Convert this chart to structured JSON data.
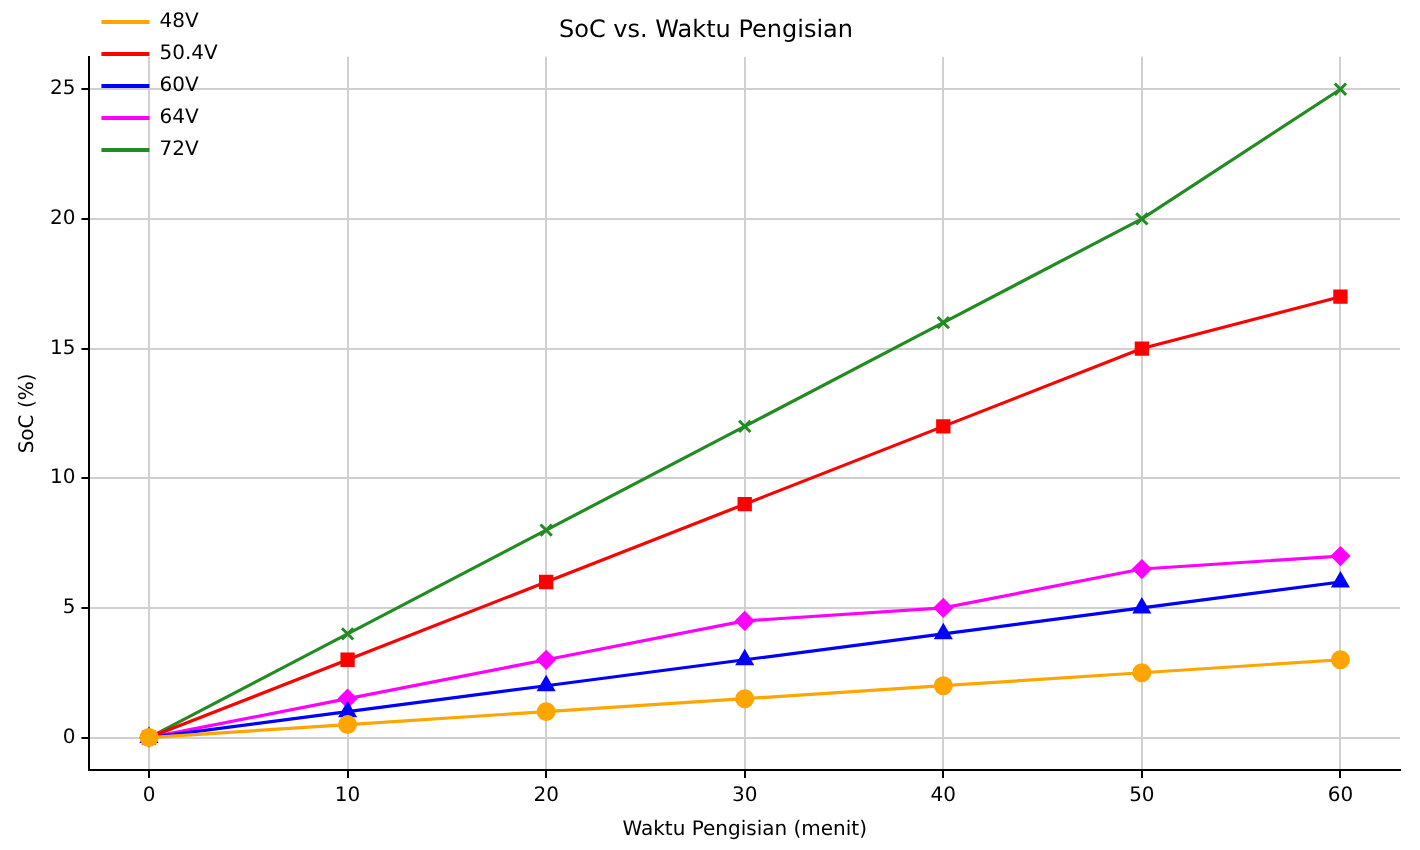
{
  "chart_data": {
    "type": "line",
    "title": "SoC vs. Waktu Pengisian",
    "xlabel": "Waktu Pengisian (menit)",
    "ylabel": "SoC (%)",
    "x": [
      0,
      10,
      20,
      30,
      40,
      50,
      60
    ],
    "series": [
      {
        "name": "48V",
        "color": "#ffa500",
        "marker": "circle",
        "values": [
          0,
          0.5,
          1,
          1.5,
          2,
          2.5,
          3
        ]
      },
      {
        "name": "50.4V",
        "color": "#ff0000",
        "marker": "square",
        "values": [
          0,
          3,
          6,
          9,
          12,
          15,
          17
        ]
      },
      {
        "name": "60V",
        "color": "#0000ff",
        "marker": "triangle",
        "values": [
          0,
          1,
          2,
          3,
          4,
          5,
          6
        ]
      },
      {
        "name": "64V",
        "color": "#ff00ff",
        "marker": "diamond",
        "values": [
          0,
          1.5,
          3,
          4.5,
          5,
          6.5,
          7
        ]
      },
      {
        "name": "72V",
        "color": "#228b22",
        "marker": "cross",
        "values": [
          0,
          4,
          8,
          12,
          16,
          20,
          25
        ]
      }
    ],
    "xlim": [
      -3,
      63
    ],
    "xticks": [
      0,
      10,
      20,
      30,
      40,
      50,
      60
    ],
    "ylim": [
      -1.25,
      26.25
    ],
    "yticks": [
      0,
      5,
      10,
      15,
      20,
      25
    ],
    "grid": true,
    "legend": "top left",
    "line_style": "solid"
  }
}
